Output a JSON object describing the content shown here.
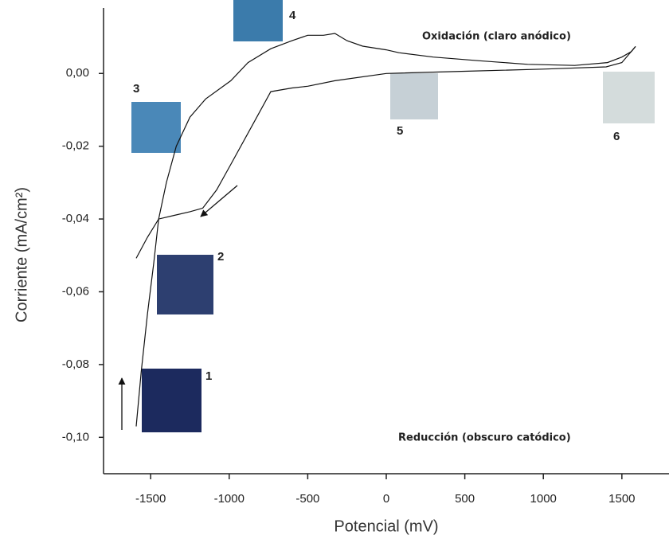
{
  "chart_data": {
    "type": "line",
    "xlabel": "Potencial (mV)",
    "ylabel": "Corriente (mA/cm²)",
    "xlim": [
      -1800,
      1800
    ],
    "ylim": [
      -0.11,
      0.018
    ],
    "xticks": [
      -1500,
      -1000,
      -500,
      0,
      500,
      1000,
      1500
    ],
    "yticks": [
      {
        "value": 0,
        "label": "0,00"
      },
      {
        "value": -0.02,
        "label": "-0,02"
      },
      {
        "value": -0.04,
        "label": "-0,04"
      },
      {
        "value": -0.06,
        "label": "-0,06"
      },
      {
        "value": -0.08,
        "label": "-0,08"
      },
      {
        "value": -0.1,
        "label": "-0,10"
      }
    ],
    "series": [
      {
        "color": "#111111",
        "x": [
          -1592,
          -1560,
          -1520,
          -1480,
          -1449,
          -1400,
          -1337,
          -1250,
          -1150,
          -990,
          -880,
          -735,
          -600,
          -500,
          -400,
          -327,
          -250,
          -150,
          0,
          80,
          300,
          592,
          900,
          1200,
          1408,
          1500,
          1560,
          1587
        ],
        "values": [
          -0.097,
          -0.082,
          -0.066,
          -0.052,
          -0.04,
          -0.03,
          -0.02,
          -0.012,
          -0.007,
          -0.002,
          0.003,
          0.0068,
          0.009,
          0.0105,
          0.0105,
          0.011,
          0.009,
          0.0075,
          0.0065,
          0.0057,
          0.0045,
          0.0035,
          0.0025,
          0.0022,
          0.003,
          0.0045,
          0.006,
          0.0074
        ]
      },
      {
        "color": "#111111",
        "x": [
          1587,
          1500,
          1400,
          1000,
          500,
          0,
          -327,
          -500,
          -600,
          -735,
          -850,
          -990,
          -1080,
          -1168,
          -1250,
          -1350,
          -1449,
          -1520,
          -1592
        ],
        "values": [
          0.0074,
          0.003,
          0.0018,
          0.0012,
          0.0006,
          0.0,
          -0.002,
          -0.0035,
          -0.004,
          -0.005,
          -0.014,
          -0.025,
          -0.032,
          -0.037,
          -0.038,
          -0.039,
          -0.04,
          -0.045,
          -0.0508
        ]
      }
    ],
    "annotations": [
      "Oxidación (claro anódico)",
      "Reducción (obscuro catódico)",
      "1",
      "2",
      "3",
      "4",
      "5",
      "6"
    ]
  }
}
